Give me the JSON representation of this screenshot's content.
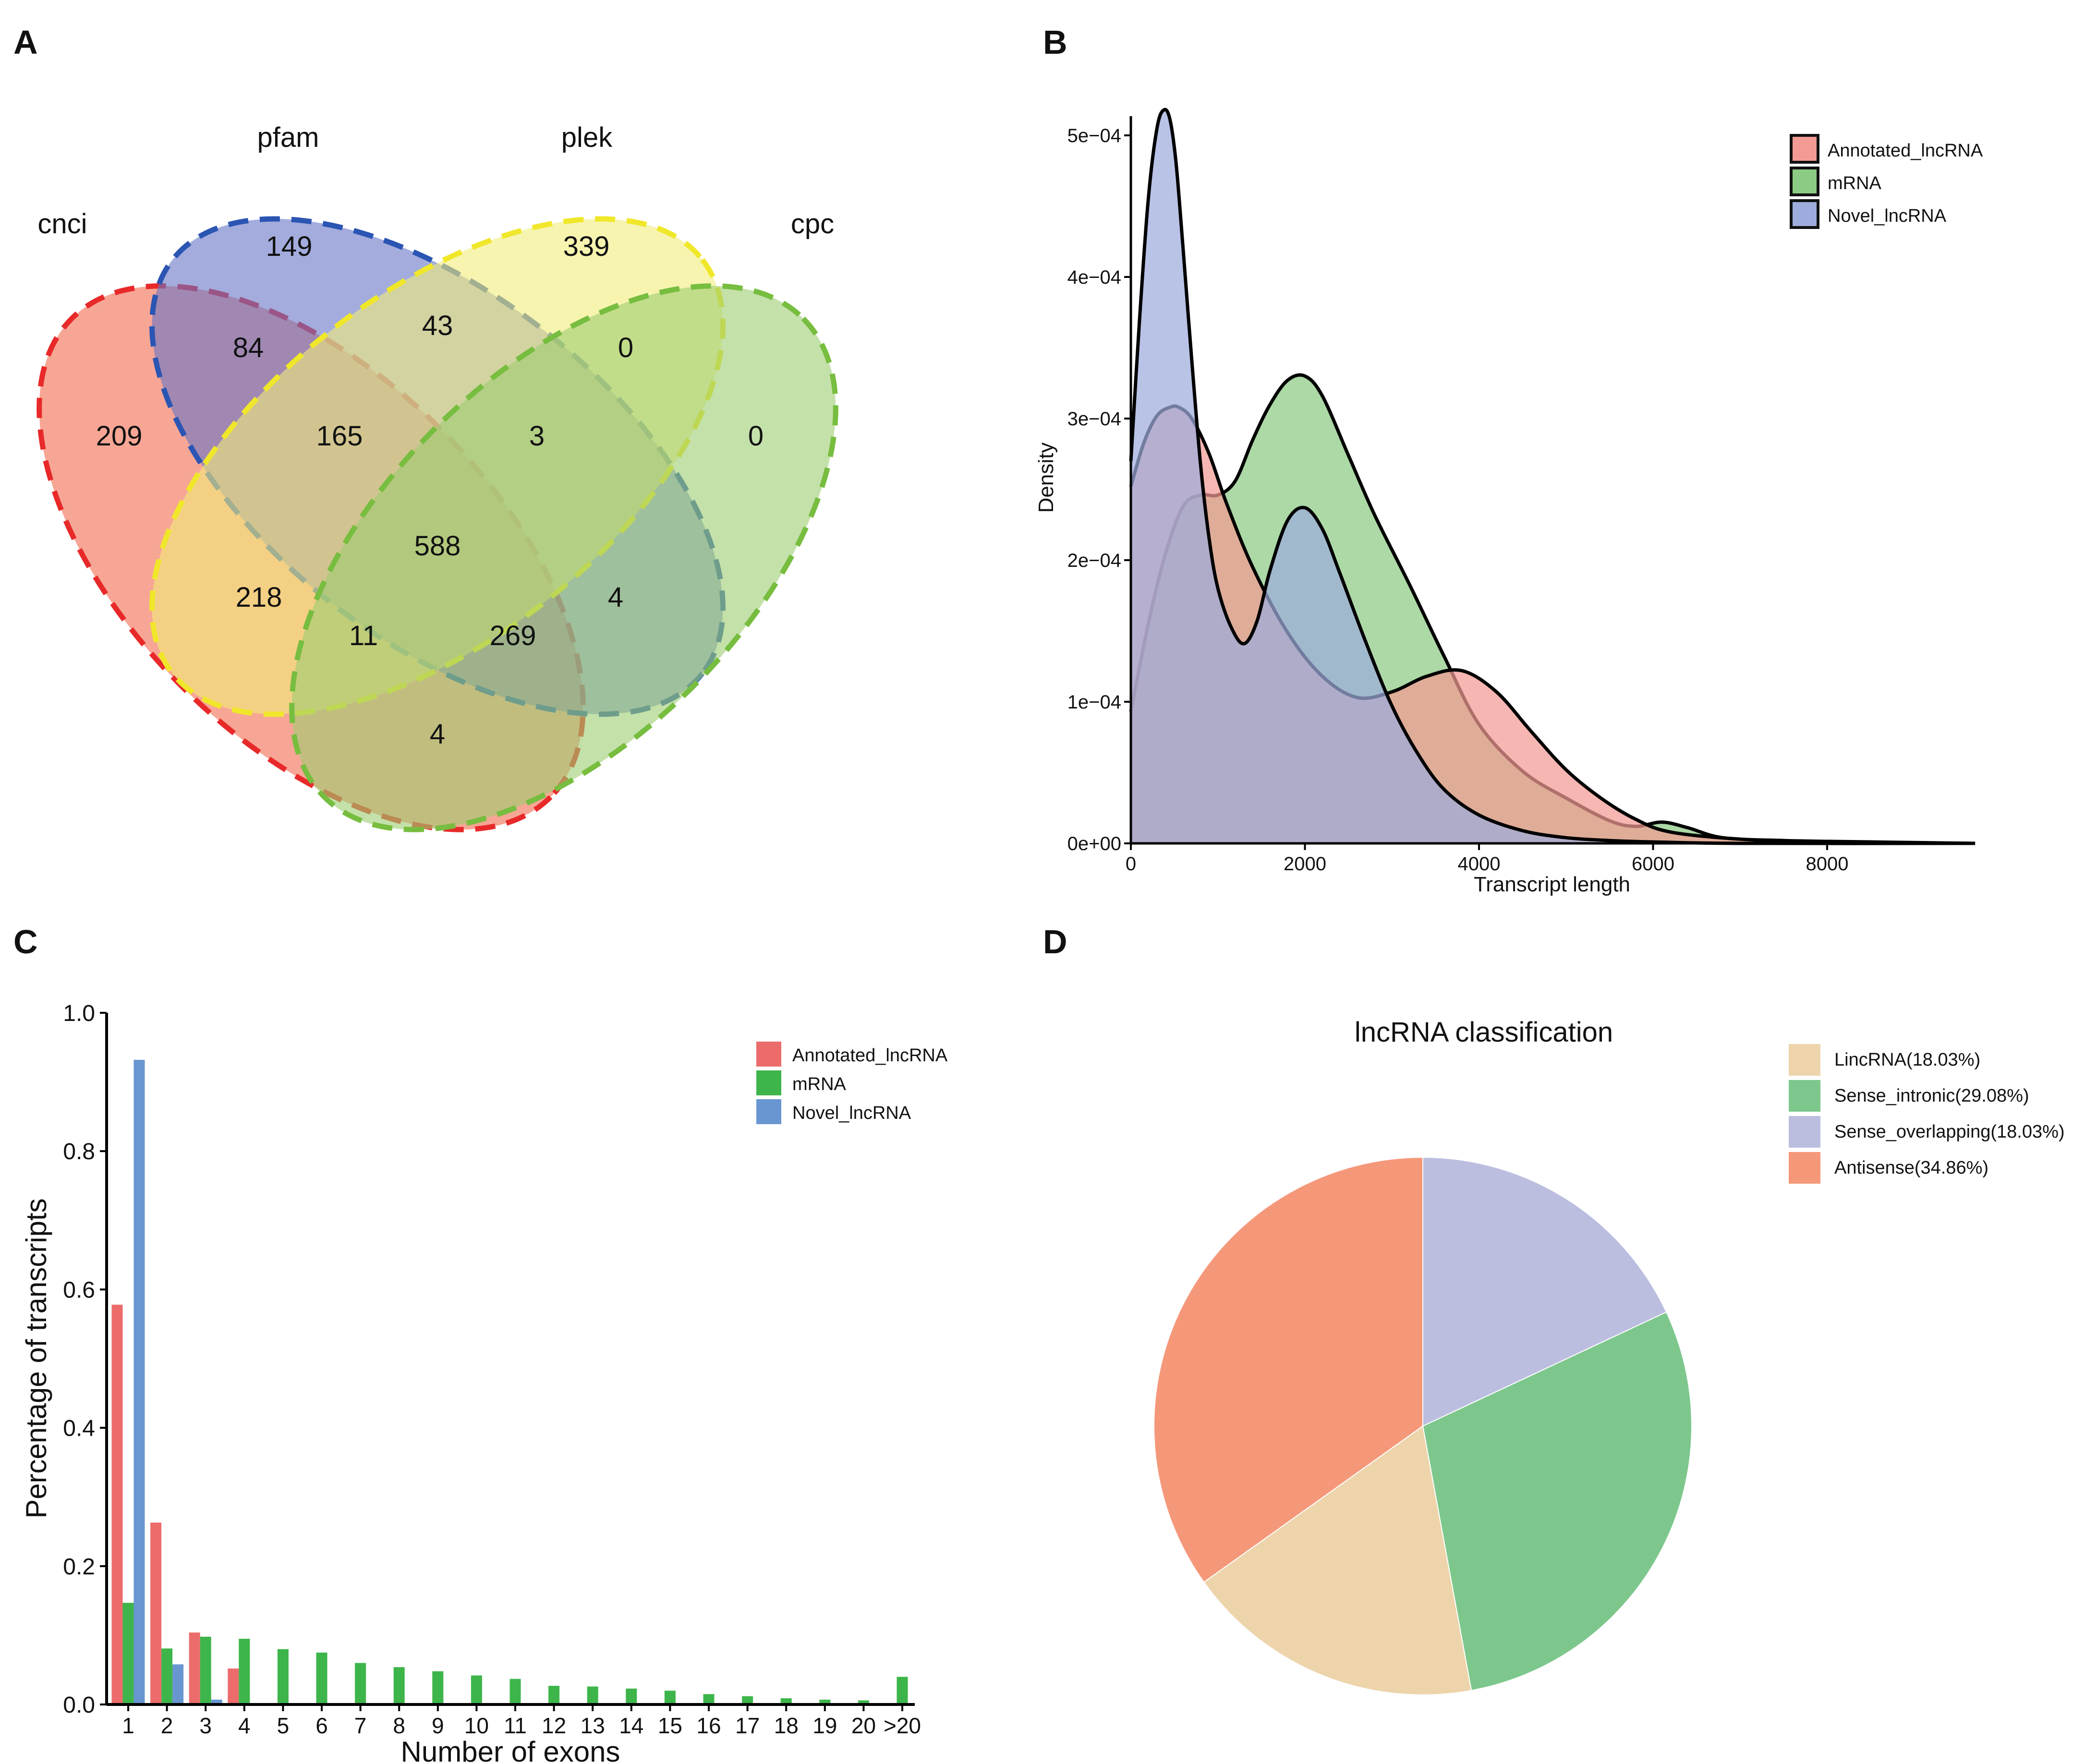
{
  "figure": {
    "panel_labels": [
      "A",
      "B",
      "C",
      "D"
    ]
  },
  "chart_data": [
    {
      "panel": "A",
      "type": "venn",
      "sets": [
        {
          "name": "cnci",
          "color": "#f26a4f"
        },
        {
          "name": "pfam",
          "color": "#6674c6"
        },
        {
          "name": "plek",
          "color": "#f2ec7a"
        },
        {
          "name": "cpc",
          "color": "#9ccd72"
        }
      ],
      "regions": [
        {
          "sets": [
            "cnci"
          ],
          "value": 209
        },
        {
          "sets": [
            "pfam"
          ],
          "value": 149
        },
        {
          "sets": [
            "plek"
          ],
          "value": 339
        },
        {
          "sets": [
            "cpc"
          ],
          "value": 0
        },
        {
          "sets": [
            "cnci",
            "pfam"
          ],
          "value": 84
        },
        {
          "sets": [
            "pfam",
            "plek"
          ],
          "value": 43
        },
        {
          "sets": [
            "plek",
            "cpc"
          ],
          "value": 0
        },
        {
          "sets": [
            "cnci",
            "pfam",
            "plek"
          ],
          "value": 165
        },
        {
          "sets": [
            "pfam",
            "plek",
            "cpc"
          ],
          "value": 3
        },
        {
          "sets": [
            "cnci",
            "pfam",
            "plek",
            "cpc"
          ],
          "value": 588
        },
        {
          "sets": [
            "cnci",
            "plek"
          ],
          "value": 218
        },
        {
          "sets": [
            "pfam",
            "cpc"
          ],
          "value": 4
        },
        {
          "sets": [
            "cnci",
            "plek",
            "cpc"
          ],
          "value": 11
        },
        {
          "sets": [
            "cnci",
            "pfam",
            "cpc"
          ],
          "value": 269
        },
        {
          "sets": [
            "cnci",
            "cpc"
          ],
          "value": 4
        }
      ]
    },
    {
      "panel": "B",
      "type": "area",
      "xlabel": "Transcript length",
      "ylabel": "Density",
      "xlim": [
        0,
        9700
      ],
      "ylim": [
        0,
        0.00052
      ],
      "xticks": [
        0,
        2000,
        4000,
        6000,
        8000
      ],
      "xtick_labels": [
        "0",
        "2000",
        "4000",
        "6000",
        "8000"
      ],
      "yticks": [
        0,
        0.0001,
        0.0002,
        0.0003,
        0.0004,
        0.0005
      ],
      "ytick_labels": [
        "0e+00",
        "1e−04",
        "2e−04",
        "3e−04",
        "4e−04",
        "5e−04"
      ],
      "legend": [
        {
          "name": "Annotated_lncRNA",
          "color": "#f29a93"
        },
        {
          "name": "mRNA",
          "color": "#8ccb83"
        },
        {
          "name": "Novel_lncRNA",
          "color": "#9dacdc"
        }
      ],
      "series": [
        {
          "name": "mRNA",
          "color": "#8ccb83",
          "x": [
            0,
            200,
            400,
            600,
            800,
            1000,
            1200,
            1400,
            1600,
            1800,
            2000,
            2200,
            2500,
            2800,
            3200,
            3600,
            4000,
            4500,
            5000,
            5500,
            5800,
            6100,
            6400,
            6800,
            7500,
            8500,
            9700
          ],
          "y": [
            9.3e-05,
            0.000155,
            0.000205,
            0.000238,
            0.000246,
            0.000246,
            0.000256,
            0.000285,
            0.00031,
            0.000327,
            0.00033,
            0.000316,
            0.000274,
            0.000232,
            0.000183,
            0.000132,
            8.4e-05,
            5.1e-05,
            3.2e-05,
            1.6e-05,
            1.2e-05,
            1.5e-05,
            1.1e-05,
            4e-06,
            2e-06,
            1e-06,
            0
          ]
        },
        {
          "name": "Annotated_lncRNA",
          "color": "#f29a93",
          "x": [
            0,
            150,
            300,
            450,
            550,
            700,
            900,
            1100,
            1400,
            1800,
            2200,
            2600,
            3000,
            3400,
            3800,
            4200,
            4600,
            5000,
            5400,
            5800,
            6200,
            7000,
            8000,
            9700
          ],
          "y": [
            0.000252,
            0.000283,
            0.000302,
            0.000308,
            0.000308,
            0.0003,
            0.000275,
            0.00024,
            0.000195,
            0.000149,
            0.000118,
            0.000103,
            0.000107,
            0.000118,
            0.000122,
            0.000107,
            7.9e-05,
            5.2e-05,
            3.2e-05,
            1.7e-05,
            8e-06,
            3e-06,
            1e-06,
            0
          ]
        },
        {
          "name": "Novel_lncRNA",
          "color": "#9dacdc",
          "x": [
            0,
            100,
            200,
            300,
            380,
            450,
            520,
            600,
            700,
            800,
            900,
            1000,
            1150,
            1300,
            1450,
            1600,
            1800,
            2000,
            2200,
            2400,
            2700,
            3000,
            3300,
            3600,
            4000,
            4500,
            5000,
            5500,
            6000,
            7000,
            9700
          ],
          "y": [
            0.00027,
            0.00037,
            0.000455,
            0.000505,
            0.000518,
            0.000511,
            0.00048,
            0.00042,
            0.000341,
            0.000268,
            0.000215,
            0.00018,
            0.000153,
            0.000141,
            0.000157,
            0.000193,
            0.000228,
            0.000237,
            0.000222,
            0.000191,
            0.000142,
            9.7e-05,
            6.3e-05,
            3.8e-05,
            2e-05,
            9e-06,
            4e-06,
            2e-06,
            1e-06,
            0,
            0
          ]
        }
      ]
    },
    {
      "panel": "C",
      "type": "bar",
      "xlabel": "Number of exons",
      "ylabel": "Percentage of transcripts",
      "ylim": [
        0,
        1.0
      ],
      "yticks": [
        0,
        0.2,
        0.4,
        0.6,
        0.8,
        1.0
      ],
      "ytick_labels": [
        "0.0",
        "0.2",
        "0.4",
        "0.6",
        "0.8",
        "1.0"
      ],
      "categories": [
        "1",
        "2",
        "3",
        "4",
        "5",
        "6",
        "7",
        "8",
        "9",
        "10",
        "11",
        "12",
        "13",
        "14",
        "15",
        "16",
        "17",
        "18",
        "19",
        "20",
        ">20"
      ],
      "series": [
        {
          "name": "Annotated_lncRNA",
          "color": "#ec6c6c",
          "values": [
            0.578,
            0.263,
            0.104,
            0.052,
            0,
            0,
            0,
            0,
            0,
            0,
            0,
            0,
            0,
            0,
            0,
            0,
            0,
            0,
            0,
            0,
            0
          ]
        },
        {
          "name": "mRNA",
          "color": "#3db54a",
          "values": [
            0.147,
            0.081,
            0.098,
            0.095,
            0.08,
            0.075,
            0.06,
            0.054,
            0.048,
            0.042,
            0.037,
            0.027,
            0.026,
            0.023,
            0.02,
            0.015,
            0.012,
            0.009,
            0.007,
            0.006,
            0.04
          ]
        },
        {
          "name": "Novel_lncRNA",
          "color": "#6896d1",
          "values": [
            0.932,
            0.058,
            0.007,
            0,
            0,
            0,
            0,
            0,
            0,
            0,
            0,
            0,
            0,
            0,
            0,
            0,
            0,
            0,
            0,
            0,
            0
          ]
        }
      ]
    },
    {
      "panel": "D",
      "type": "pie",
      "title": "lncRNA classification",
      "slices": [
        {
          "name": "LincRNA",
          "legend_label": "LincRNA(18.03%)",
          "value": 18.03,
          "color": "#edd4ab"
        },
        {
          "name": "Sense_intronic",
          "legend_label": "Sense_intronic(29.08%)",
          "value": 29.08,
          "color": "#7dc78d"
        },
        {
          "name": "Sense_overlapping",
          "legend_label": "Sense_overlapping(18.03%)",
          "value": 18.03,
          "color": "#bcbee0"
        },
        {
          "name": "Antisense",
          "legend_label": "Antisense(34.86%)",
          "value": 34.86,
          "color": "#f5987a"
        }
      ]
    }
  ]
}
